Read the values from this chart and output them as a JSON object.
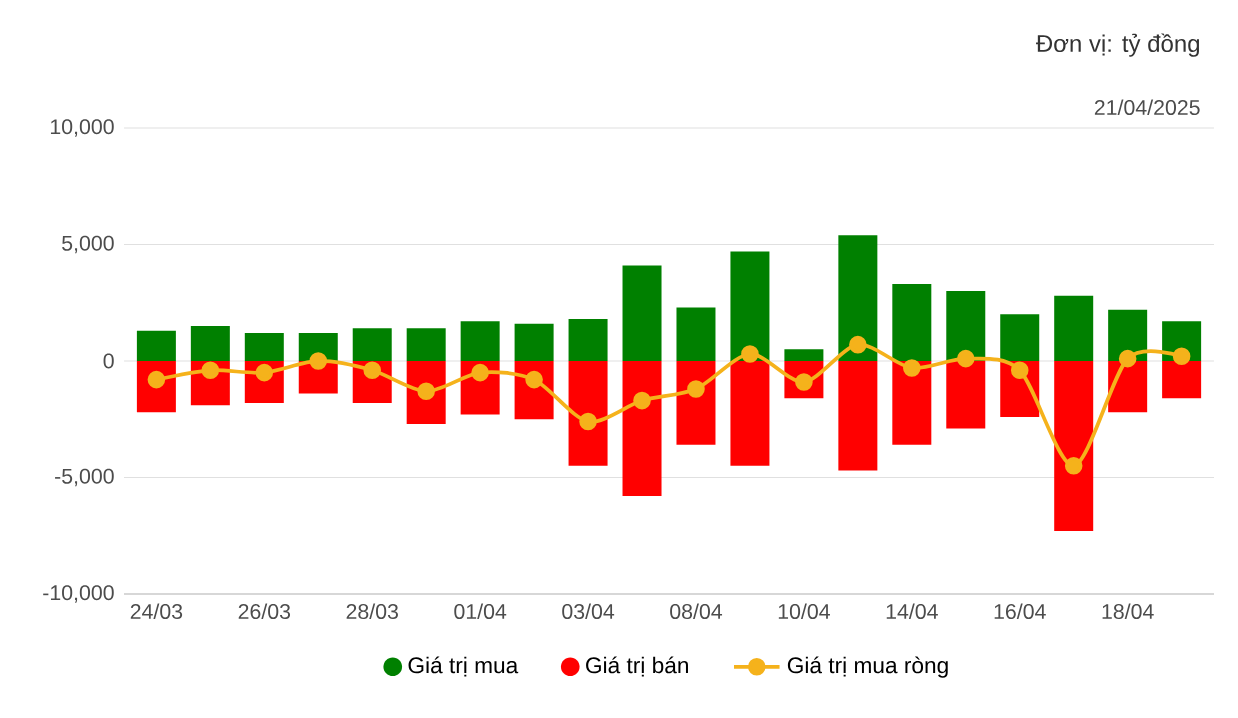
{
  "chart_data": {
    "type": "bar",
    "title": "Đơn vị: tỷ đồng",
    "subtitle": "21/04/2025",
    "categories": [
      "24/03",
      null,
      "26/03",
      null,
      "28/03",
      null,
      "01/04",
      null,
      "03/04",
      null,
      "08/04",
      null,
      "10/04",
      null,
      "14/04",
      null,
      "16/04",
      null,
      "18/04",
      null
    ],
    "series": [
      {
        "name": "Giá trị mua",
        "color": "#008000",
        "values": [
          1300,
          1500,
          1200,
          1200,
          1400,
          1400,
          1700,
          1600,
          1800,
          4100,
          2300,
          4700,
          500,
          5400,
          3300,
          3000,
          2000,
          2800,
          2200,
          1700
        ]
      },
      {
        "name": "Giá trị bán",
        "color": "#ff0000",
        "values": [
          -2200,
          -1900,
          -1800,
          -1400,
          -1800,
          -2700,
          -2300,
          -2500,
          -4500,
          -5800,
          -3600,
          -4500,
          -1600,
          -4700,
          -3600,
          -2900,
          -2400,
          -7300,
          -2200,
          -1600
        ]
      },
      {
        "name": "Giá trị mua ròng",
        "type": "line",
        "color": "#f5b21b",
        "marker": "circle",
        "line_style": "solid",
        "values": [
          -800,
          -400,
          -500,
          0,
          -400,
          -1300,
          -500,
          -800,
          -2600,
          -1700,
          -1200,
          300,
          -900,
          700,
          -300,
          100,
          -400,
          -4500,
          100,
          200
        ]
      }
    ],
    "ylim": [
      -10000,
      10000
    ],
    "yticks": [
      {
        "value": -10000,
        "label": "-10,000"
      },
      {
        "value": -5000,
        "label": "-5,000"
      },
      0,
      {
        "value": 5000,
        "label": "5,000"
      },
      {
        "value": 10000,
        "label": "10,000"
      }
    ],
    "grid": "y",
    "legend": "bottom",
    "stacked": true
  }
}
